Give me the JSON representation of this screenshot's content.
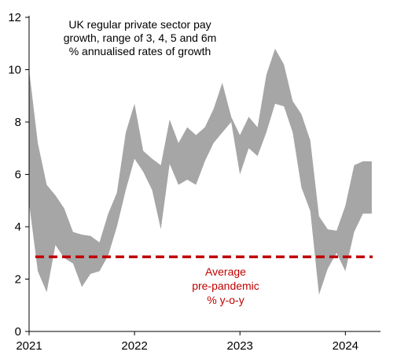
{
  "chart_data": {
    "type": "area",
    "title_lines": [
      "UK regular private sector pay",
      "growth, range of 3, 4, 5 and 6m",
      "% annualised rates of growth"
    ],
    "xlabel": "",
    "ylabel": "",
    "ylim": [
      0,
      12
    ],
    "yticks": [
      0,
      2,
      4,
      6,
      8,
      10,
      12
    ],
    "xlim": [
      2021.0,
      2024.333
    ],
    "xticks": [
      {
        "value": 2021,
        "label": "2021"
      },
      {
        "value": 2022,
        "label": "2022"
      },
      {
        "value": 2023,
        "label": "2023"
      },
      {
        "value": 2024,
        "label": "2024"
      }
    ],
    "grid": false,
    "series": [
      {
        "kind": "range_band",
        "color": "#a6a6a6",
        "x": [
          2021.0,
          2021.083,
          2021.167,
          2021.25,
          2021.333,
          2021.417,
          2021.5,
          2021.583,
          2021.667,
          2021.75,
          2021.833,
          2021.917,
          2022.0,
          2022.083,
          2022.167,
          2022.25,
          2022.333,
          2022.417,
          2022.5,
          2022.583,
          2022.667,
          2022.75,
          2022.833,
          2022.917,
          2023.0,
          2023.083,
          2023.167,
          2023.25,
          2023.333,
          2023.417,
          2023.5,
          2023.583,
          2023.667,
          2023.75,
          2023.833,
          2023.917,
          2024.0,
          2024.083,
          2024.167,
          2024.25
        ],
        "upper": [
          10.0,
          7.2,
          5.6,
          5.2,
          4.7,
          3.8,
          3.7,
          3.65,
          3.4,
          4.5,
          5.3,
          7.6,
          8.7,
          6.9,
          6.6,
          6.35,
          8.1,
          7.2,
          7.8,
          7.5,
          7.8,
          8.5,
          9.5,
          8.2,
          7.5,
          8.2,
          7.8,
          9.8,
          10.8,
          10.2,
          8.8,
          8.3,
          7.3,
          4.4,
          3.9,
          3.85,
          4.8,
          6.35,
          6.5,
          6.5
        ],
        "lower": [
          4.9,
          2.3,
          1.5,
          3.3,
          2.8,
          2.6,
          1.7,
          2.2,
          2.3,
          2.9,
          4.0,
          5.4,
          6.6,
          6.1,
          5.4,
          3.9,
          6.4,
          5.6,
          5.8,
          5.6,
          6.5,
          7.2,
          7.6,
          8.0,
          6.0,
          7.0,
          6.7,
          7.6,
          8.7,
          8.6,
          7.6,
          5.5,
          4.6,
          1.4,
          2.4,
          3.0,
          2.3,
          3.8,
          4.5,
          4.5
        ]
      }
    ],
    "reference_line": {
      "value": 2.85,
      "color": "#c00000",
      "style": "dashed",
      "label_lines": [
        "Average",
        "pre-pandemic",
        "% y-o-y"
      ]
    }
  }
}
